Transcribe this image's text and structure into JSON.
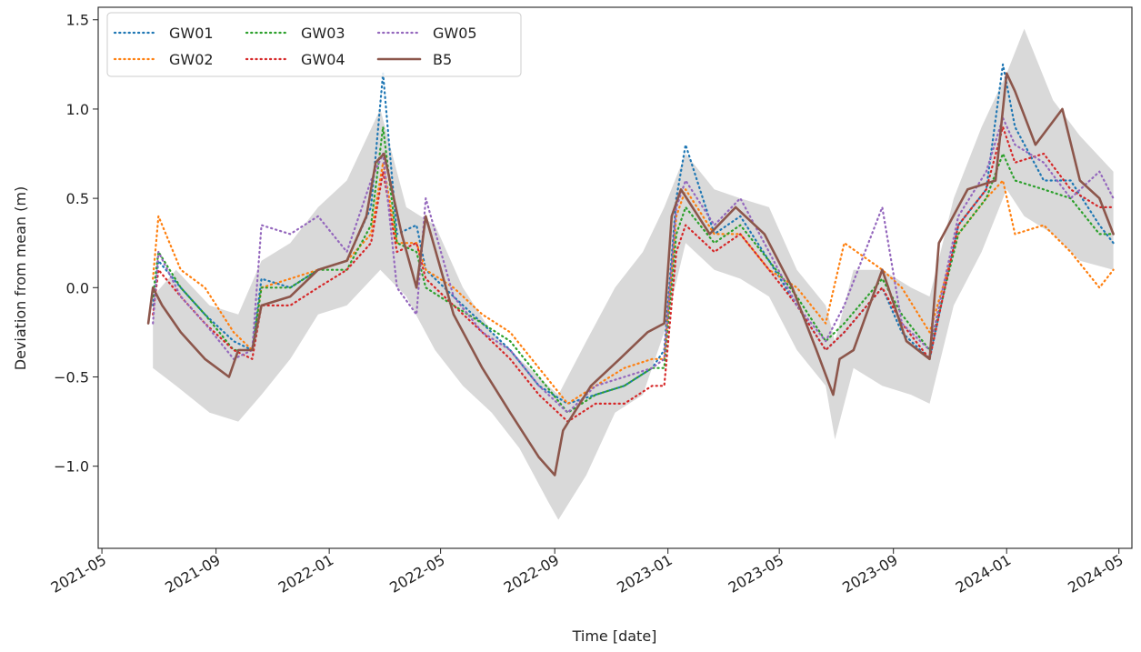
{
  "chart_data": {
    "type": "line",
    "xlabel": "Time [date]",
    "ylabel": "Deviation from mean (m)",
    "x_ticks": [
      "2021-05",
      "2021-09",
      "2022-01",
      "2022-05",
      "2022-09",
      "2023-01",
      "2023-05",
      "2023-09",
      "2024-01",
      "2024-05"
    ],
    "y_ticks": [
      "−1.0",
      "−0.5",
      "0.0",
      "0.5",
      "1.0",
      "1.5"
    ],
    "y_tick_values": [
      -1.0,
      -0.5,
      0.0,
      0.5,
      1.0,
      1.5
    ],
    "xlim": [
      "2021-04-27",
      "2024-05-15"
    ],
    "ylim": [
      -1.46,
      1.57
    ],
    "legend_position": "upper-left",
    "band": {
      "color": "#d9d9d9",
      "dates": [
        "2021-06-25",
        "2021-07-20",
        "2021-08-25",
        "2021-09-25",
        "2021-10-20",
        "2021-11-20",
        "2021-12-20",
        "2022-01-20",
        "2022-02-25",
        "2022-03-25",
        "2022-04-25",
        "2022-05-25",
        "2022-06-25",
        "2022-07-25",
        "2022-08-25",
        "2022-09-05",
        "2022-10-05",
        "2022-11-05",
        "2022-12-05",
        "2022-12-28",
        "2023-01-20",
        "2023-02-20",
        "2023-03-20",
        "2023-04-20",
        "2023-05-20",
        "2023-06-20",
        "2023-06-30",
        "2023-07-20",
        "2023-08-20",
        "2023-09-20",
        "2023-10-10",
        "2023-11-05",
        "2023-12-05",
        "2024-01-01",
        "2024-01-20",
        "2024-02-20",
        "2024-03-20",
        "2024-04-25"
      ],
      "lower": [
        -0.45,
        -0.55,
        -0.7,
        -0.75,
        -0.6,
        -0.4,
        -0.15,
        -0.1,
        0.1,
        -0.05,
        -0.35,
        -0.55,
        -0.7,
        -0.9,
        -1.2,
        -1.3,
        -1.05,
        -0.7,
        -0.6,
        -0.25,
        0.25,
        0.1,
        0.05,
        -0.05,
        -0.35,
        -0.55,
        -0.85,
        -0.45,
        -0.55,
        -0.6,
        -0.65,
        -0.1,
        0.2,
        0.55,
        0.4,
        0.3,
        0.15,
        0.1
      ],
      "upper": [
        -0.05,
        0.1,
        -0.1,
        -0.15,
        0.15,
        0.25,
        0.45,
        0.6,
        1.0,
        0.45,
        0.35,
        0.0,
        -0.25,
        -0.4,
        -0.55,
        -0.6,
        -0.3,
        0.0,
        0.2,
        0.45,
        0.75,
        0.55,
        0.5,
        0.45,
        0.1,
        -0.1,
        -0.3,
        0.1,
        0.1,
        0.0,
        -0.05,
        0.5,
        0.9,
        1.2,
        1.45,
        1.05,
        0.85,
        0.65
      ]
    },
    "series": [
      {
        "name": "GW01",
        "color": "#1f77b4",
        "style": "dotted",
        "dates": [
          "2021-06-25",
          "2021-07-01",
          "2021-07-25",
          "2021-08-20",
          "2021-09-20",
          "2021-10-10",
          "2021-10-20",
          "2021-11-20",
          "2021-12-20",
          "2022-01-20",
          "2022-02-15",
          "2022-02-28",
          "2022-03-15",
          "2022-04-05",
          "2022-04-15",
          "2022-05-15",
          "2022-06-15",
          "2022-07-15",
          "2022-08-15",
          "2022-09-15",
          "2022-10-15",
          "2022-11-15",
          "2022-12-15",
          "2022-12-28",
          "2023-01-10",
          "2023-01-20",
          "2023-02-20",
          "2023-03-20",
          "2023-04-20",
          "2023-05-20",
          "2023-06-20",
          "2023-07-10",
          "2023-08-20",
          "2023-09-10",
          "2023-10-10",
          "2023-11-10",
          "2023-12-10",
          "2023-12-28",
          "2024-01-10",
          "2024-02-10",
          "2024-03-10",
          "2024-04-10",
          "2024-04-25"
        ],
        "values": [
          -0.1,
          0.15,
          0.0,
          -0.15,
          -0.3,
          -0.35,
          0.05,
          0.0,
          0.1,
          0.15,
          0.45,
          1.2,
          0.3,
          0.35,
          0.1,
          -0.05,
          -0.2,
          -0.35,
          -0.55,
          -0.65,
          -0.6,
          -0.55,
          -0.45,
          -0.35,
          0.5,
          0.8,
          0.3,
          0.4,
          0.15,
          -0.1,
          -0.35,
          -0.25,
          0.0,
          -0.25,
          -0.4,
          0.35,
          0.55,
          1.25,
          0.9,
          0.6,
          0.6,
          0.35,
          0.25
        ]
      },
      {
        "name": "GW02",
        "color": "#ff7f0e",
        "style": "dotted",
        "dates": [
          "2021-06-25",
          "2021-07-01",
          "2021-07-25",
          "2021-08-20",
          "2021-09-20",
          "2021-10-10",
          "2021-10-20",
          "2021-11-20",
          "2021-12-20",
          "2022-01-20",
          "2022-02-15",
          "2022-02-28",
          "2022-03-15",
          "2022-04-05",
          "2022-04-15",
          "2022-05-15",
          "2022-06-15",
          "2022-07-15",
          "2022-08-15",
          "2022-09-15",
          "2022-10-15",
          "2022-11-15",
          "2022-12-15",
          "2022-12-28",
          "2023-01-10",
          "2023-01-20",
          "2023-02-20",
          "2023-03-20",
          "2023-04-20",
          "2023-05-20",
          "2023-06-20",
          "2023-07-10",
          "2023-08-20",
          "2023-09-10",
          "2023-10-10",
          "2023-11-10",
          "2023-12-10",
          "2023-12-28",
          "2024-01-10",
          "2024-02-10",
          "2024-03-10",
          "2024-04-10",
          "2024-04-25"
        ],
        "values": [
          0.05,
          0.4,
          0.1,
          0.0,
          -0.25,
          -0.35,
          0.0,
          0.05,
          0.1,
          0.15,
          0.3,
          0.7,
          0.25,
          0.25,
          0.1,
          0.0,
          -0.15,
          -0.25,
          -0.45,
          -0.65,
          -0.55,
          -0.45,
          -0.4,
          -0.4,
          0.4,
          0.55,
          0.3,
          0.3,
          0.1,
          0.0,
          -0.2,
          0.25,
          0.1,
          0.0,
          -0.25,
          0.3,
          0.5,
          0.6,
          0.3,
          0.35,
          0.2,
          0.0,
          0.1
        ]
      },
      {
        "name": "GW03",
        "color": "#2ca02c",
        "style": "dotted",
        "dates": [
          "2021-06-25",
          "2021-07-01",
          "2021-07-25",
          "2021-08-20",
          "2021-09-20",
          "2021-10-10",
          "2021-10-20",
          "2021-11-20",
          "2021-12-20",
          "2022-01-20",
          "2022-02-15",
          "2022-02-28",
          "2022-03-15",
          "2022-04-05",
          "2022-04-15",
          "2022-05-15",
          "2022-06-15",
          "2022-07-15",
          "2022-08-15",
          "2022-09-15",
          "2022-10-15",
          "2022-11-15",
          "2022-12-15",
          "2022-12-28",
          "2023-01-10",
          "2023-01-20",
          "2023-02-20",
          "2023-03-20",
          "2023-04-20",
          "2023-05-20",
          "2023-06-20",
          "2023-07-10",
          "2023-08-20",
          "2023-09-10",
          "2023-10-10",
          "2023-11-10",
          "2023-12-10",
          "2023-12-28",
          "2024-01-10",
          "2024-02-10",
          "2024-03-10",
          "2024-04-10",
          "2024-04-25"
        ],
        "values": [
          -0.05,
          0.2,
          0.0,
          -0.15,
          -0.35,
          -0.35,
          0.0,
          0.0,
          0.1,
          0.1,
          0.35,
          0.9,
          0.25,
          0.2,
          0.0,
          -0.1,
          -0.2,
          -0.3,
          -0.5,
          -0.7,
          -0.6,
          -0.55,
          -0.45,
          -0.45,
          0.3,
          0.45,
          0.25,
          0.35,
          0.15,
          -0.05,
          -0.3,
          -0.2,
          0.05,
          -0.15,
          -0.35,
          0.3,
          0.5,
          0.75,
          0.6,
          0.55,
          0.5,
          0.3,
          0.3
        ]
      },
      {
        "name": "GW04",
        "color": "#d62728",
        "style": "dotted",
        "dates": [
          "2021-06-25",
          "2021-07-01",
          "2021-07-25",
          "2021-08-20",
          "2021-09-20",
          "2021-10-10",
          "2021-10-20",
          "2021-11-20",
          "2021-12-20",
          "2022-01-20",
          "2022-02-15",
          "2022-02-28",
          "2022-03-15",
          "2022-04-05",
          "2022-04-15",
          "2022-05-15",
          "2022-06-15",
          "2022-07-15",
          "2022-08-15",
          "2022-09-15",
          "2022-10-15",
          "2022-11-15",
          "2022-12-15",
          "2022-12-28",
          "2023-01-10",
          "2023-01-20",
          "2023-02-20",
          "2023-03-20",
          "2023-04-20",
          "2023-05-20",
          "2023-06-20",
          "2023-07-10",
          "2023-08-20",
          "2023-09-10",
          "2023-10-10",
          "2023-11-10",
          "2023-12-10",
          "2023-12-28",
          "2024-01-10",
          "2024-02-10",
          "2024-03-10",
          "2024-04-10",
          "2024-04-25"
        ],
        "values": [
          -0.15,
          0.1,
          -0.05,
          -0.2,
          -0.35,
          -0.4,
          -0.1,
          -0.1,
          0.0,
          0.1,
          0.25,
          0.65,
          0.2,
          0.25,
          0.05,
          -0.1,
          -0.25,
          -0.4,
          -0.6,
          -0.75,
          -0.65,
          -0.65,
          -0.55,
          -0.55,
          0.2,
          0.35,
          0.2,
          0.3,
          0.1,
          -0.1,
          -0.35,
          -0.25,
          0.0,
          -0.2,
          -0.4,
          0.35,
          0.55,
          0.9,
          0.7,
          0.75,
          0.55,
          0.45,
          0.45
        ]
      },
      {
        "name": "GW05",
        "color": "#9467bd",
        "style": "dotted",
        "dates": [
          "2021-06-25",
          "2021-07-01",
          "2021-07-25",
          "2021-08-20",
          "2021-09-20",
          "2021-10-10",
          "2021-10-20",
          "2021-11-20",
          "2021-12-20",
          "2022-01-20",
          "2022-02-15",
          "2022-02-28",
          "2022-03-15",
          "2022-04-05",
          "2022-04-15",
          "2022-05-15",
          "2022-06-15",
          "2022-07-15",
          "2022-08-15",
          "2022-09-15",
          "2022-10-15",
          "2022-11-15",
          "2022-12-15",
          "2022-12-28",
          "2023-01-10",
          "2023-01-20",
          "2023-02-20",
          "2023-03-20",
          "2023-04-20",
          "2023-05-20",
          "2023-06-20",
          "2023-07-10",
          "2023-08-20",
          "2023-09-10",
          "2023-10-10",
          "2023-11-10",
          "2023-12-10",
          "2023-12-28",
          "2024-01-10",
          "2024-02-10",
          "2024-03-10",
          "2024-04-10",
          "2024-04-25"
        ],
        "values": [
          -0.2,
          0.2,
          -0.05,
          -0.2,
          -0.4,
          -0.35,
          0.35,
          0.3,
          0.4,
          0.2,
          0.6,
          0.75,
          0.0,
          -0.15,
          0.5,
          -0.05,
          -0.25,
          -0.35,
          -0.55,
          -0.7,
          -0.55,
          -0.5,
          -0.45,
          -0.4,
          0.45,
          0.6,
          0.35,
          0.5,
          0.2,
          -0.1,
          -0.3,
          -0.1,
          0.45,
          -0.2,
          -0.35,
          0.4,
          0.65,
          0.95,
          0.8,
          0.7,
          0.5,
          0.65,
          0.5
        ]
      },
      {
        "name": "B5",
        "color": "#8c564b",
        "style": "solid",
        "dates": [
          "2021-06-20",
          "2021-06-25",
          "2021-07-05",
          "2021-07-25",
          "2021-08-20",
          "2021-09-15",
          "2021-09-25",
          "2021-10-10",
          "2021-10-20",
          "2021-11-20",
          "2021-12-20",
          "2022-01-20",
          "2022-02-10",
          "2022-02-20",
          "2022-03-01",
          "2022-03-20",
          "2022-04-05",
          "2022-04-15",
          "2022-05-15",
          "2022-06-15",
          "2022-07-15",
          "2022-08-15",
          "2022-09-01",
          "2022-09-10",
          "2022-10-10",
          "2022-11-10",
          "2022-12-10",
          "2022-12-28",
          "2023-01-05",
          "2023-01-15",
          "2023-02-15",
          "2023-03-15",
          "2023-04-15",
          "2023-05-15",
          "2023-06-10",
          "2023-06-28",
          "2023-07-05",
          "2023-07-20",
          "2023-08-20",
          "2023-09-15",
          "2023-10-10",
          "2023-10-20",
          "2023-11-20",
          "2023-12-20",
          "2024-01-01",
          "2024-01-10",
          "2024-02-01",
          "2024-03-01",
          "2024-03-20",
          "2024-04-10",
          "2024-04-25"
        ],
        "values": [
          -0.2,
          0.0,
          -0.1,
          -0.25,
          -0.4,
          -0.5,
          -0.35,
          -0.35,
          -0.1,
          -0.05,
          0.1,
          0.15,
          0.4,
          0.7,
          0.75,
          0.3,
          0.0,
          0.4,
          -0.15,
          -0.45,
          -0.7,
          -0.95,
          -1.05,
          -0.8,
          -0.55,
          -0.4,
          -0.25,
          -0.2,
          0.4,
          0.55,
          0.3,
          0.45,
          0.3,
          0.0,
          -0.35,
          -0.6,
          -0.4,
          -0.35,
          0.1,
          -0.3,
          -0.4,
          0.25,
          0.55,
          0.6,
          1.2,
          1.1,
          0.8,
          1.0,
          0.6,
          0.5,
          0.3
        ]
      }
    ]
  }
}
